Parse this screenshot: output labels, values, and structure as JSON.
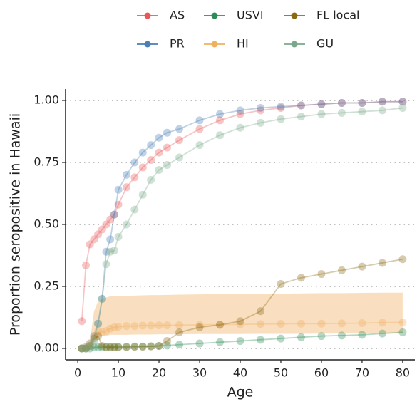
{
  "chart_data": {
    "type": "line",
    "x_label": "Age",
    "y_label": "Proportion seropositive in Hawaii",
    "x": [
      1,
      2,
      3,
      4,
      5,
      6,
      7,
      8,
      9,
      10,
      12,
      14,
      16,
      18,
      20,
      22,
      25,
      30,
      35,
      40,
      45,
      50,
      55,
      60,
      65,
      70,
      75,
      80
    ],
    "xlim": [
      -3,
      83
    ],
    "xticks": [
      0,
      10,
      20,
      30,
      40,
      50,
      60,
      70,
      80
    ],
    "ylim": [
      -0.046,
      1.046
    ],
    "yticks": [
      {
        "value": 0,
        "label": "0.00"
      },
      {
        "value": 0.25,
        "label": "0.25"
      },
      {
        "value": 0.5,
        "label": "0.50"
      },
      {
        "value": 0.75,
        "label": "0.75"
      },
      {
        "value": 1,
        "label": "1.00"
      }
    ],
    "grid": true,
    "series": [
      {
        "name": "AS",
        "color": "#e8585a",
        "values": [
          0.11,
          0.335,
          0.42,
          0.44,
          0.46,
          0.48,
          0.5,
          0.52,
          0.54,
          0.58,
          0.65,
          0.69,
          0.73,
          0.76,
          0.79,
          0.81,
          0.84,
          0.885,
          0.92,
          0.945,
          0.96,
          0.97,
          0.98,
          0.985,
          0.99,
          0.99,
          0.995,
          0.995
        ]
      },
      {
        "name": "PR",
        "color": "#4a7fb5",
        "values": [
          0,
          0.005,
          0.02,
          0.05,
          0.1,
          0.2,
          0.39,
          0.44,
          0.54,
          0.64,
          0.7,
          0.75,
          0.79,
          0.82,
          0.85,
          0.87,
          0.885,
          0.92,
          0.945,
          0.96,
          0.97,
          0.975,
          0.98,
          0.985,
          0.99,
          0.99,
          0.995,
          0.995
        ]
      },
      {
        "name": "USVI",
        "color": "#2e8b57",
        "values": [
          0,
          0,
          0,
          0.005,
          0.005,
          0.005,
          0.005,
          0.005,
          0.006,
          0.006,
          0.007,
          0.008,
          0.008,
          0.009,
          0.01,
          0.012,
          0.015,
          0.02,
          0.025,
          0.03,
          0.035,
          0.04,
          0.045,
          0.05,
          0.052,
          0.055,
          0.06,
          0.065
        ]
      },
      {
        "name": "HI",
        "color": "#f0b060",
        "values": [
          0,
          0.005,
          0.02,
          0.05,
          0.07,
          0.065,
          0.07,
          0.08,
          0.085,
          0.087,
          0.09,
          0.09,
          0.092,
          0.092,
          0.093,
          0.093,
          0.094,
          0.095,
          0.096,
          0.097,
          0.098,
          0.099,
          0.1,
          0.1,
          0.101,
          0.102,
          0.104,
          0.105
        ],
        "lower": [
          0,
          0,
          0.01,
          0.03,
          0.045,
          0.05,
          0.05,
          0.055,
          0.055,
          0.055,
          0.055,
          0.056,
          0.056,
          0.056,
          0.057,
          0.057,
          0.057,
          0.058,
          0.058,
          0.058,
          0.059,
          0.059,
          0.059,
          0.06,
          0.06,
          0.06,
          0.06,
          0.06
        ],
        "upper": [
          0,
          0.005,
          0.03,
          0.15,
          0.19,
          0.2,
          0.205,
          0.21,
          0.21,
          0.21,
          0.212,
          0.213,
          0.214,
          0.215,
          0.215,
          0.216,
          0.217,
          0.218,
          0.219,
          0.22,
          0.22,
          0.221,
          0.222,
          0.223,
          0.223,
          0.224,
          0.225,
          0.225
        ]
      },
      {
        "name": "FL local",
        "color": "#8b6914",
        "values": [
          0,
          0,
          0.01,
          0.04,
          0.05,
          0.01,
          0.005,
          0.005,
          0.005,
          0.005,
          0.005,
          0.006,
          0.007,
          0.008,
          0.01,
          0.03,
          0.065,
          0.085,
          0.095,
          0.11,
          0.15,
          0.26,
          0.285,
          0.3,
          0.315,
          0.33,
          0.345,
          0.36
        ]
      },
      {
        "name": "GU",
        "color": "#79a88a",
        "values": [
          0,
          0,
          0.01,
          0.03,
          0.1,
          0.2,
          0.34,
          0.39,
          0.395,
          0.45,
          0.5,
          0.56,
          0.62,
          0.68,
          0.72,
          0.74,
          0.77,
          0.82,
          0.86,
          0.89,
          0.91,
          0.925,
          0.935,
          0.945,
          0.95,
          0.955,
          0.96,
          0.97
        ]
      }
    ]
  }
}
